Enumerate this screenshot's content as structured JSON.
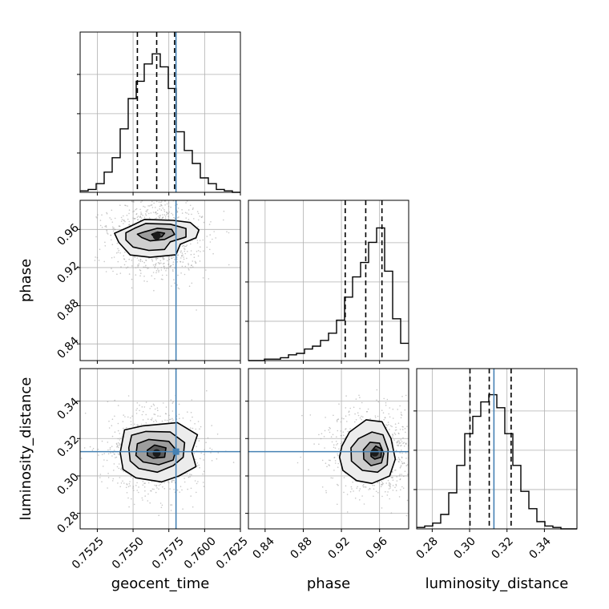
{
  "chart_data": {
    "type": "corner",
    "params": [
      "geocent_time",
      "phase",
      "luminosity_distance"
    ],
    "labels": {
      "geocent_time": "geocent_time",
      "phase": "phase",
      "luminosity_distance": "luminosity_distance"
    },
    "ranges": {
      "geocent_time": [
        0.7513,
        0.7625
      ],
      "phase": [
        0.8225,
        0.9905
      ],
      "luminosity_distance": [
        0.2717,
        0.3574
      ]
    },
    "ticks": {
      "geocent_time": [
        "0.7525",
        "0.7550",
        "0.7575",
        "0.7600",
        "0.7625"
      ],
      "phase": [
        "0.84",
        "0.88",
        "0.92",
        "0.96"
      ],
      "luminosity_distance": [
        "0.28",
        "0.30",
        "0.32",
        "0.34"
      ]
    },
    "truth": {
      "geocent_time": 0.758,
      "phase": null,
      "luminosity_distance": 0.313
    },
    "colors": {
      "truth": "#4682b4",
      "hist": "#000000",
      "grid": "#b0b0b0",
      "points": "#9a9a9a"
    },
    "histograms": {
      "geocent_time": {
        "edges": [
          0.7513,
          0.75186,
          0.75242,
          0.75298,
          0.75354,
          0.7541,
          0.75466,
          0.75522,
          0.75578,
          0.75634,
          0.7569,
          0.75746,
          0.75802,
          0.75858,
          0.75914,
          0.7597,
          0.76026,
          0.76082,
          0.76138,
          0.76194,
          0.7625
        ],
        "counts": [
          0.01,
          0.02,
          0.06,
          0.14,
          0.24,
          0.44,
          0.65,
          0.77,
          0.89,
          0.96,
          0.87,
          0.72,
          0.42,
          0.29,
          0.2,
          0.1,
          0.06,
          0.02,
          0.01,
          0.0
        ],
        "quantiles": [
          0.7553,
          0.75665,
          0.7579
        ]
      },
      "phase": {
        "edges": [
          0.8225,
          0.8309,
          0.8393,
          0.8477,
          0.8561,
          0.8645,
          0.8729,
          0.8813,
          0.8897,
          0.8981,
          0.9065,
          0.9149,
          0.9233,
          0.9317,
          0.9401,
          0.9485,
          0.9569,
          0.9653,
          0.9737,
          0.9821,
          0.9905
        ],
        "counts": [
          0.0,
          0.0,
          0.01,
          0.01,
          0.02,
          0.04,
          0.05,
          0.08,
          0.1,
          0.14,
          0.19,
          0.28,
          0.44,
          0.58,
          0.68,
          0.82,
          0.92,
          0.62,
          0.29,
          0.12
        ],
        "quantiles": [
          0.924,
          0.9455,
          0.9625
        ]
      },
      "luminosity_distance": {
        "edges": [
          0.2717,
          0.27598,
          0.28027,
          0.28455,
          0.28884,
          0.29312,
          0.29741,
          0.30169,
          0.30598,
          0.31026,
          0.31455,
          0.31883,
          0.32312,
          0.3274,
          0.33169,
          0.33597,
          0.34026,
          0.34454,
          0.34883,
          0.35311,
          0.3574
        ],
        "counts": [
          0.01,
          0.02,
          0.04,
          0.1,
          0.25,
          0.44,
          0.66,
          0.78,
          0.88,
          0.93,
          0.84,
          0.66,
          0.44,
          0.26,
          0.14,
          0.05,
          0.02,
          0.01,
          0.0,
          0.0
        ],
        "quantiles": [
          0.3002,
          0.3105,
          0.3222
        ]
      }
    },
    "pairs": [
      {
        "x": "geocent_time",
        "y": "phase",
        "center": [
          0.75665,
          0.9533
        ],
        "contours": [
          [
            [
              0.7548,
              0.9632
            ],
            [
              0.7558,
              0.9705
            ],
            [
              0.7578,
              0.9695
            ],
            [
              0.759,
              0.9672
            ],
            [
              0.7596,
              0.9595
            ],
            [
              0.7594,
              0.9512
            ],
            [
              0.7583,
              0.9445
            ],
            [
              0.758,
              0.9335
            ],
            [
              0.7562,
              0.9308
            ],
            [
              0.7548,
              0.9332
            ],
            [
              0.754,
              0.9465
            ],
            [
              0.7537,
              0.956
            ]
          ],
          [
            [
              0.7551,
              0.9612
            ],
            [
              0.7559,
              0.9662
            ],
            [
              0.7576,
              0.9655
            ],
            [
              0.7587,
              0.961
            ],
            [
              0.7587,
              0.952
            ],
            [
              0.7576,
              0.947
            ],
            [
              0.7572,
              0.939
            ],
            [
              0.7561,
              0.938
            ],
            [
              0.755,
              0.9415
            ],
            [
              0.7545,
              0.949
            ],
            [
              0.7545,
              0.9565
            ]
          ],
          [
            [
              0.7558,
              0.9575
            ],
            [
              0.7567,
              0.9612
            ],
            [
              0.7577,
              0.96
            ],
            [
              0.7579,
              0.9548
            ],
            [
              0.7572,
              0.9495
            ],
            [
              0.7562,
              0.948
            ],
            [
              0.7556,
              0.9515
            ],
            [
              0.7553,
              0.955
            ]
          ],
          [
            [
              0.7563,
              0.9548
            ],
            [
              0.7567,
              0.9572
            ],
            [
              0.7572,
              0.956
            ],
            [
              0.757,
              0.9523
            ],
            [
              0.7565,
              0.952
            ]
          ]
        ]
      },
      {
        "x": "geocent_time",
        "y": "luminosity_distance",
        "center": [
          0.75665,
          0.3122
        ],
        "contours": [
          [
            [
              0.7544,
              0.3246
            ],
            [
              0.7557,
              0.3268
            ],
            [
              0.7581,
              0.3285
            ],
            [
              0.7595,
              0.322
            ],
            [
              0.7591,
              0.313
            ],
            [
              0.7594,
              0.305
            ],
            [
              0.7582,
              0.3
            ],
            [
              0.757,
              0.2968
            ],
            [
              0.7552,
              0.299
            ],
            [
              0.7543,
              0.3035
            ],
            [
              0.7541,
              0.3125
            ]
          ],
          [
            [
              0.7549,
              0.3218
            ],
            [
              0.7559,
              0.3238
            ],
            [
              0.7576,
              0.3235
            ],
            [
              0.7586,
              0.3178
            ],
            [
              0.7585,
              0.31
            ],
            [
              0.7578,
              0.3055
            ],
            [
              0.7567,
              0.302
            ],
            [
              0.7554,
              0.304
            ],
            [
              0.7548,
              0.308
            ],
            [
              0.7547,
              0.315
            ]
          ],
          [
            [
              0.7553,
              0.3172
            ],
            [
              0.7561,
              0.3195
            ],
            [
              0.7575,
              0.3185
            ],
            [
              0.758,
              0.314
            ],
            [
              0.7578,
              0.3085
            ],
            [
              0.7568,
              0.306
            ],
            [
              0.7557,
              0.3075
            ],
            [
              0.7552,
              0.311
            ]
          ],
          [
            [
              0.756,
              0.3138
            ],
            [
              0.7565,
              0.3165
            ],
            [
              0.7573,
              0.315
            ],
            [
              0.7572,
              0.31
            ],
            [
              0.7564,
              0.3095
            ],
            [
              0.756,
              0.311
            ]
          ]
        ]
      },
      {
        "x": "phase",
        "y": "luminosity_distance",
        "center": [
          0.955,
          0.3125
        ],
        "contours": [
          [
            [
              0.9205,
              0.316
            ],
            [
              0.9285,
              0.3235
            ],
            [
              0.946,
              0.33
            ],
            [
              0.9625,
              0.329
            ],
            [
              0.972,
              0.32
            ],
            [
              0.9765,
              0.309
            ],
            [
              0.9705,
              0.3
            ],
            [
              0.952,
              0.296
            ],
            [
              0.936,
              0.2975
            ],
            [
              0.9215,
              0.303
            ],
            [
              0.918,
              0.31
            ]
          ],
          [
            [
              0.93,
              0.315
            ],
            [
              0.938,
              0.32
            ],
            [
              0.952,
              0.3235
            ],
            [
              0.9635,
              0.322
            ],
            [
              0.969,
              0.314
            ],
            [
              0.968,
              0.306
            ],
            [
              0.958,
              0.302
            ],
            [
              0.942,
              0.303
            ],
            [
              0.9305,
              0.308
            ]
          ],
          [
            [
              0.943,
              0.314
            ],
            [
              0.95,
              0.318
            ],
            [
              0.96,
              0.3175
            ],
            [
              0.9645,
              0.312
            ],
            [
              0.962,
              0.307
            ],
            [
              0.951,
              0.3055
            ],
            [
              0.9435,
              0.309
            ]
          ],
          [
            [
              0.951,
              0.313
            ],
            [
              0.956,
              0.316
            ],
            [
              0.962,
              0.3145
            ],
            [
              0.9615,
              0.31
            ],
            [
              0.955,
              0.309
            ],
            [
              0.951,
              0.3105
            ]
          ]
        ]
      }
    ]
  }
}
